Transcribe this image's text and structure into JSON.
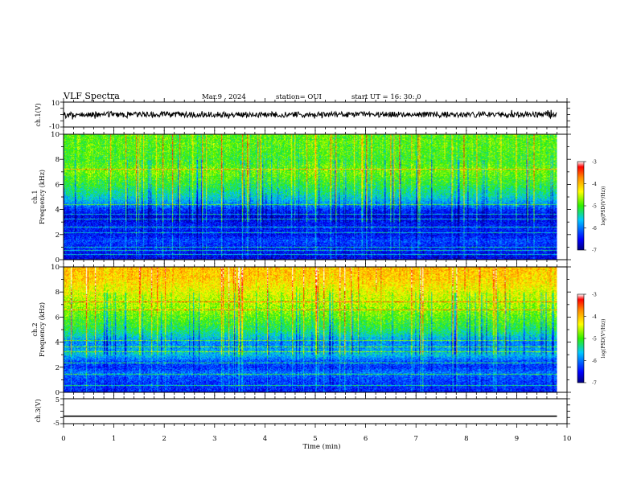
{
  "header": {
    "title": "VLF Spectra",
    "date": "Mar.9 , 2024",
    "station": "station= OUI",
    "start": "start UT = 16: 30: 0"
  },
  "chart_data": [
    {
      "type": "line",
      "name": "ch1-waveform",
      "ylabel": "ch.1(V)",
      "ylim": [
        -10,
        10
      ],
      "yticks": [
        "10",
        "-10"
      ],
      "xlim": [
        0,
        10
      ],
      "trace_level_V": 0,
      "trace_end_min": 9.8
    },
    {
      "type": "heatmap",
      "name": "ch1-spectrogram",
      "ylabel_top": "ch.1",
      "ylabel": "Frequency (kHz)",
      "ylim": [
        0,
        10
      ],
      "yticks": [
        0,
        2,
        4,
        6,
        8,
        10
      ],
      "xlim": [
        0,
        10
      ],
      "data_end_min": 9.8,
      "colorbar": {
        "label": "log(PSD(V²/Hz))",
        "range": [
          -7,
          -3
        ],
        "ticks": [
          "-3",
          "-4",
          "-5",
          "-6",
          "-7"
        ]
      },
      "profile_log_psd": [
        {
          "khz": 0.0,
          "v": -6.6
        },
        {
          "khz": 0.5,
          "v": -6.5
        },
        {
          "khz": 1.0,
          "v": -6.4
        },
        {
          "khz": 1.5,
          "v": -6.2
        },
        {
          "khz": 2.0,
          "v": -6.5
        },
        {
          "khz": 2.5,
          "v": -6.4
        },
        {
          "khz": 3.0,
          "v": -6.5
        },
        {
          "khz": 3.5,
          "v": -6.6
        },
        {
          "khz": 4.0,
          "v": -6.3
        },
        {
          "khz": 4.5,
          "v": -5.8
        },
        {
          "khz": 5.0,
          "v": -5.5
        },
        {
          "khz": 6.0,
          "v": -5.1
        },
        {
          "khz": 7.0,
          "v": -4.8
        },
        {
          "khz": 8.0,
          "v": -5.0
        },
        {
          "khz": 9.0,
          "v": -4.9
        },
        {
          "khz": 10.0,
          "v": -4.9
        }
      ],
      "narrowbands_khz": [
        0.4,
        0.7,
        1.0,
        2.1,
        2.6,
        3.2,
        3.6,
        4.4,
        7.2
      ]
    },
    {
      "type": "heatmap",
      "name": "ch2-spectrogram",
      "ylabel_top": "ch.2",
      "ylabel": "Frequency (kHz)",
      "ylim": [
        0,
        10
      ],
      "yticks": [
        0,
        2,
        4,
        6,
        8,
        10
      ],
      "xlim": [
        0,
        10
      ],
      "data_end_min": 9.8,
      "colorbar": {
        "label": "log(PSD(V²/Hz))",
        "range": [
          -7,
          -3
        ],
        "ticks": [
          "-3",
          "-4",
          "-5",
          "-6",
          "-7"
        ]
      },
      "profile_log_psd": [
        {
          "khz": 0.0,
          "v": -6.4
        },
        {
          "khz": 0.5,
          "v": -6.3
        },
        {
          "khz": 1.0,
          "v": -6.2
        },
        {
          "khz": 1.5,
          "v": -6.0
        },
        {
          "khz": 2.0,
          "v": -6.3
        },
        {
          "khz": 2.5,
          "v": -6.1
        },
        {
          "khz": 3.0,
          "v": -5.6
        },
        {
          "khz": 3.5,
          "v": -5.8
        },
        {
          "khz": 4.0,
          "v": -5.9
        },
        {
          "khz": 4.5,
          "v": -5.5
        },
        {
          "khz": 5.0,
          "v": -5.2
        },
        {
          "khz": 6.0,
          "v": -4.9
        },
        {
          "khz": 7.0,
          "v": -4.6
        },
        {
          "khz": 8.0,
          "v": -4.4
        },
        {
          "khz": 9.0,
          "v": -4.1
        },
        {
          "khz": 10.0,
          "v": -4.0
        }
      ],
      "narrowbands_khz": [
        0.5,
        1.4,
        2.3,
        3.2,
        3.6,
        4.1,
        6.6,
        7.2
      ]
    },
    {
      "type": "line",
      "name": "ch3-waveform",
      "ylabel": "ch.3(V)",
      "ylim": [
        -5,
        5
      ],
      "yticks": [
        "5",
        "-5"
      ],
      "xlim": [
        0,
        10
      ],
      "trace_level_V": -2,
      "trace_end_min": 9.8
    }
  ],
  "x_axis": {
    "label": "Time (min)",
    "ticks": [
      "0",
      "1",
      "2",
      "3",
      "4",
      "5",
      "6",
      "7",
      "8",
      "9",
      "10"
    ]
  },
  "colors": {
    "colormap": [
      "#00007f",
      "#0000ff",
      "#00c8ff",
      "#2ef000",
      "#ffff00",
      "#ff8a00",
      "#ff0000",
      "#ffffff"
    ]
  }
}
